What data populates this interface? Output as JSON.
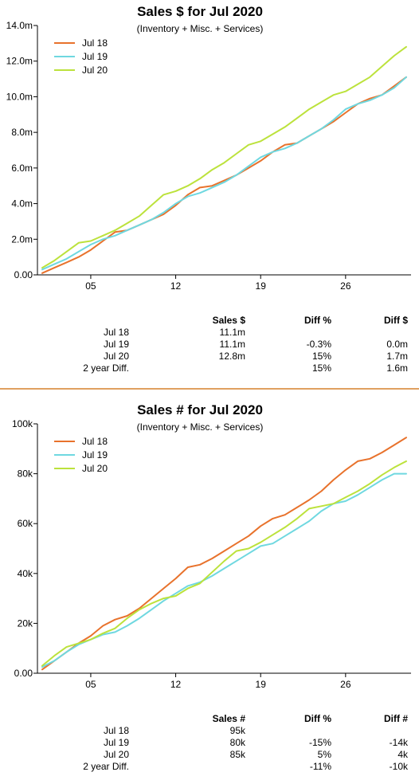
{
  "colors": {
    "jul18": "#e8722c",
    "jul19": "#6fd8e0",
    "jul20": "#bce23c",
    "divider": "#e0a060"
  },
  "chart_data": [
    {
      "type": "line",
      "title": "Sales $ for Jul 2020",
      "subtitle": "(Inventory + Misc. + Services)",
      "xlabel": "",
      "ylabel": "",
      "xlim": [
        1,
        31
      ],
      "ylim": [
        0,
        14000000
      ],
      "xticks": [
        5,
        12,
        19,
        26
      ],
      "xtick_labels": [
        "05",
        "12",
        "19",
        "26"
      ],
      "yticks": [
        0,
        2000000,
        4000000,
        6000000,
        8000000,
        10000000,
        12000000,
        14000000
      ],
      "ytick_labels": [
        "0.00",
        "2.0m",
        "4.0m",
        "6.0m",
        "8.0m",
        "10.0m",
        "12.0m",
        "14.0m"
      ],
      "legend_position": "top-left",
      "x": [
        1,
        2,
        3,
        4,
        5,
        6,
        7,
        8,
        9,
        10,
        11,
        12,
        13,
        14,
        15,
        16,
        17,
        18,
        19,
        20,
        21,
        22,
        23,
        24,
        25,
        26,
        27,
        28,
        29,
        30,
        31
      ],
      "series": [
        {
          "name": "Jul 18",
          "color": "#e8722c",
          "values": [
            0.1,
            0.4,
            0.7,
            1.0,
            1.4,
            1.9,
            2.4,
            2.5,
            2.8,
            3.1,
            3.4,
            3.9,
            4.5,
            4.9,
            5.0,
            5.3,
            5.6,
            6.0,
            6.4,
            6.9,
            7.3,
            7.4,
            7.8,
            8.2,
            8.6,
            9.1,
            9.6,
            9.9,
            10.1,
            10.6,
            11.1
          ]
        },
        {
          "name": "Jul 19",
          "color": "#6fd8e0",
          "values": [
            0.3,
            0.6,
            0.9,
            1.3,
            1.7,
            2.0,
            2.2,
            2.5,
            2.8,
            3.1,
            3.5,
            4.0,
            4.4,
            4.6,
            4.9,
            5.2,
            5.6,
            6.1,
            6.6,
            6.9,
            7.1,
            7.4,
            7.8,
            8.2,
            8.7,
            9.3,
            9.6,
            9.8,
            10.1,
            10.5,
            11.1
          ]
        },
        {
          "name": "Jul 20",
          "color": "#bce23c",
          "values": [
            0.4,
            0.8,
            1.3,
            1.8,
            1.9,
            2.2,
            2.5,
            2.9,
            3.3,
            3.9,
            4.5,
            4.7,
            5.0,
            5.4,
            5.9,
            6.3,
            6.8,
            7.3,
            7.5,
            7.9,
            8.3,
            8.8,
            9.3,
            9.7,
            10.1,
            10.3,
            10.7,
            11.1,
            11.7,
            12.3,
            12.8
          ]
        }
      ]
    },
    {
      "type": "line",
      "title": "Sales # for Jul 2020",
      "subtitle": "(Inventory + Misc. + Services)",
      "xlabel": "",
      "ylabel": "",
      "xlim": [
        1,
        31
      ],
      "ylim": [
        0,
        100000
      ],
      "xticks": [
        5,
        12,
        19,
        26
      ],
      "xtick_labels": [
        "05",
        "12",
        "19",
        "26"
      ],
      "yticks": [
        0,
        20000,
        40000,
        60000,
        80000,
        100000
      ],
      "ytick_labels": [
        "0.00",
        "20k",
        "40k",
        "60k",
        "80k",
        "100k"
      ],
      "legend_position": "top-left",
      "x": [
        1,
        2,
        3,
        4,
        5,
        6,
        7,
        8,
        9,
        10,
        11,
        12,
        13,
        14,
        15,
        16,
        17,
        18,
        19,
        20,
        21,
        22,
        23,
        24,
        25,
        26,
        27,
        28,
        29,
        30,
        31
      ],
      "series": [
        {
          "name": "Jul 18",
          "color": "#e8722c",
          "values": [
            1.5,
            5,
            8.5,
            12,
            15,
            19,
            21.5,
            23,
            26,
            30,
            34,
            38,
            42.5,
            43.5,
            46,
            49,
            52,
            55,
            59,
            62,
            63.5,
            66.5,
            69.5,
            73,
            77.5,
            81.5,
            85,
            86,
            88.5,
            91.5,
            94.5
          ]
        },
        {
          "name": "Jul 19",
          "color": "#6fd8e0",
          "values": [
            2.5,
            5,
            8.5,
            11.5,
            13.5,
            15.5,
            16.5,
            19,
            22,
            25.5,
            29,
            32,
            35,
            36.5,
            39,
            42,
            45,
            48,
            51,
            52,
            55,
            58,
            61,
            65,
            68,
            69,
            71.5,
            74.5,
            77.5,
            80,
            80
          ]
        },
        {
          "name": "Jul 20",
          "color": "#bce23c",
          "values": [
            3,
            7,
            10.5,
            12,
            13.5,
            16,
            18,
            22,
            25.5,
            28,
            30,
            31,
            34,
            36,
            40.5,
            45,
            49,
            50,
            52.5,
            55.5,
            58.5,
            62,
            66,
            67,
            68,
            70.5,
            73,
            76,
            79.5,
            82.5,
            85
          ]
        }
      ]
    }
  ],
  "summary1": {
    "headers": [
      "Sales $",
      "Diff %",
      "Diff $"
    ],
    "rows": [
      {
        "label": "Jul 18",
        "v1": "11.1m",
        "v2": "",
        "v3": ""
      },
      {
        "label": "Jul 19",
        "v1": "11.1m",
        "v2": "-0.3%",
        "v3": "0.0m"
      },
      {
        "label": "Jul 20",
        "v1": "12.8m",
        "v2": "15%",
        "v3": "1.7m"
      },
      {
        "label": "2 year Diff.",
        "v1": "",
        "v2": "15%",
        "v3": "1.6m"
      }
    ]
  },
  "summary2": {
    "headers": [
      "Sales #",
      "Diff %",
      "Diff #"
    ],
    "rows": [
      {
        "label": "Jul 18",
        "v1": "95k",
        "v2": "",
        "v3": ""
      },
      {
        "label": "Jul 19",
        "v1": "80k",
        "v2": "-15%",
        "v3": "-14k"
      },
      {
        "label": "Jul 20",
        "v1": "85k",
        "v2": "5%",
        "v3": "4k"
      },
      {
        "label": "2 year Diff.",
        "v1": "",
        "v2": "-11%",
        "v3": "-10k"
      }
    ]
  }
}
